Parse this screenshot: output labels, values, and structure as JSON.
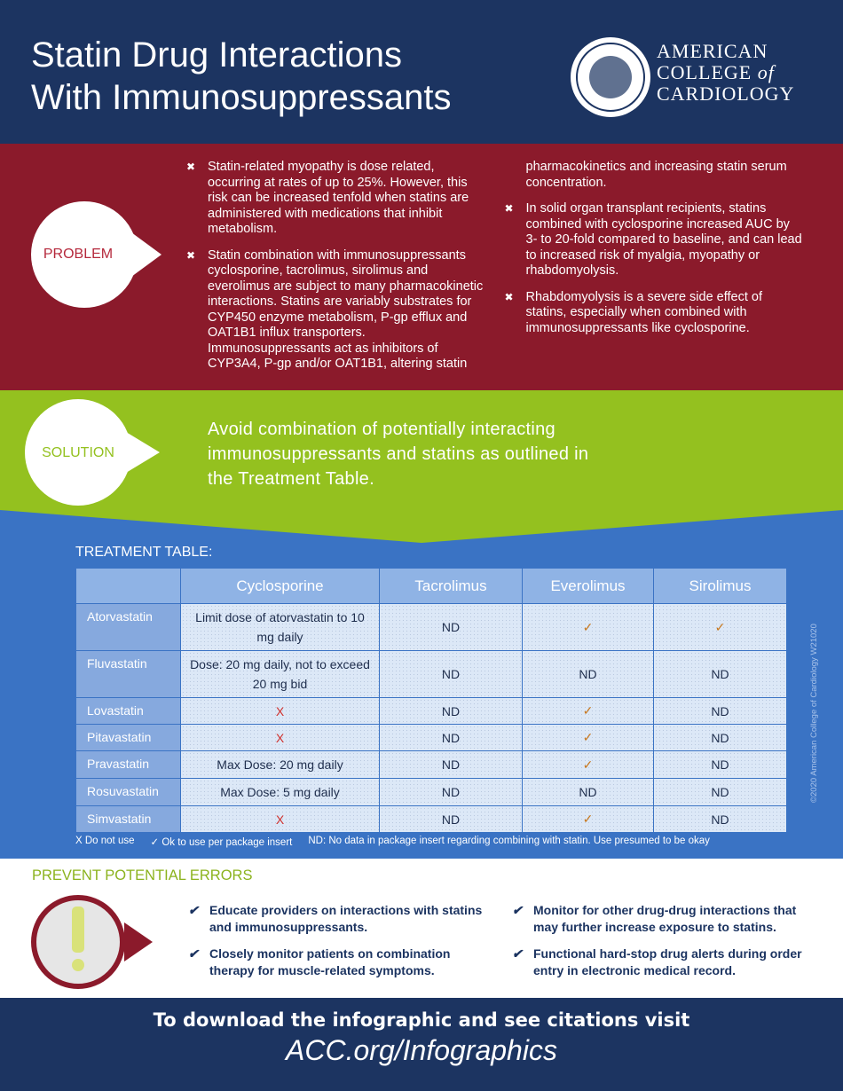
{
  "header": {
    "title": [
      "Statin Drug Interactions",
      "With Immunosuppressants"
    ],
    "logo": {
      "line1": "AMERICAN",
      "line2": "COLLEGE",
      "line2_of": "of",
      "line3": "CARDIOLOGY"
    }
  },
  "problem": {
    "label": "PROBLEM",
    "bullets": [
      "Statin-related myopathy is dose related, occurring at rates of up to 25%. However, this risk can be increased tenfold when statins are administered with medications that inhibit metabolism.",
      "Statin combination with immunosuppressants cyclosporine, tacrolimus, sirolimus and everolimus are subject to many pharmacokinetic interactions. Statins are variably substrates for CYP450 enzyme metabolism, P-gp efflux and OAT1B1 influx transporters. Immunosuppressants act as inhibitors of CYP3A4, P-gp and/or OAT1B1, altering statin pharmacokinetics and increasing statin serum concentration.",
      "In solid organ transplant recipients, statins combined with cyclosporine increased AUC by 3- to 20-fold compared to baseline, and can lead to increased risk of myalgia, myopathy or rhabdomyolysis.",
      "Rhabdomyolysis is a severe side effect of statins, especially when combined with immunosuppressants like cyclosporine."
    ]
  },
  "solution": {
    "label": "SOLUTION",
    "text": "Avoid combination of potentially interacting immunosuppressants and statins as outlined in the Treatment Table."
  },
  "treatment_table": {
    "title": "TREATMENT TABLE:",
    "columns": [
      "Cyclosporine",
      "Tacrolimus",
      "Everolimus",
      "Sirolimus"
    ],
    "symbol_colors": {
      "X": "#d0312d",
      "✓": "#c8781e"
    },
    "rows": [
      {
        "drug": "Atorvastatin",
        "cells": [
          "Limit dose of atorvastatin to 10 mg daily",
          "ND",
          "✓",
          "✓"
        ]
      },
      {
        "drug": "Fluvastatin",
        "cells": [
          "Dose: 20 mg daily, not to exceed 20 mg bid",
          "ND",
          "ND",
          "ND"
        ]
      },
      {
        "drug": "Lovastatin",
        "cells": [
          "X",
          "ND",
          "✓",
          "ND"
        ]
      },
      {
        "drug": "Pitavastatin",
        "cells": [
          "X",
          "ND",
          "✓",
          "ND"
        ]
      },
      {
        "drug": "Pravastatin",
        "cells": [
          "Max Dose: 20 mg daily",
          "ND",
          "✓",
          "ND"
        ]
      },
      {
        "drug": "Rosuvastatin",
        "cells": [
          "Max Dose: 5 mg daily",
          "ND",
          "ND",
          "ND"
        ]
      },
      {
        "drug": "Simvastatin",
        "cells": [
          "X",
          "ND",
          "✓",
          "ND"
        ]
      }
    ],
    "legend": [
      "X Do not use",
      "✓ Ok to use per package insert",
      "ND: No data in package insert regarding combining with statin. Use presumed to be okay"
    ],
    "credit": "©2020 American College of Cardiology W21020"
  },
  "prevent": {
    "title": "PREVENT POTENTIAL ERRORS",
    "items": [
      "Educate providers on interactions with statins and immunosuppressants.",
      "Closely monitor patients on combination therapy for muscle-related symptoms.",
      "Monitor for other drug-drug interactions that may further increase exposure to statins.",
      "Functional hard-stop drug alerts during order entry in electronic medical record."
    ]
  },
  "footer": {
    "line1": "To download the infographic and see citations visit",
    "line2": "ACC.org/Infographics"
  }
}
